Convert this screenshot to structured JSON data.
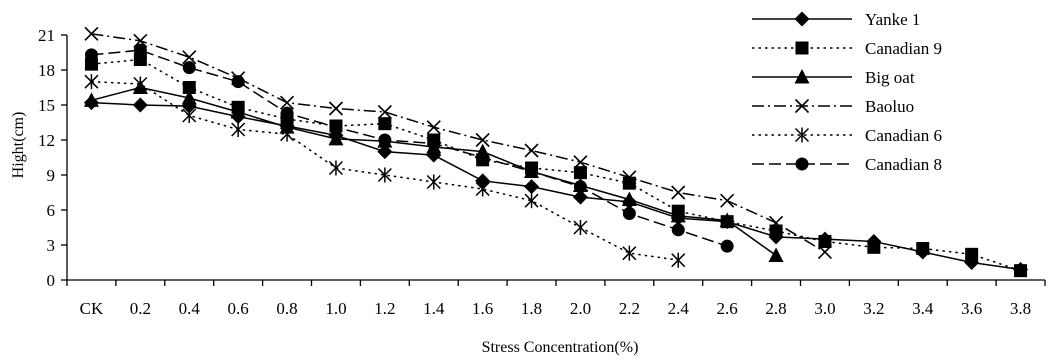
{
  "chart_data": {
    "type": "line",
    "title": "",
    "xlabel": "Stress Concentration(%)",
    "ylabel": "Hight(cm)",
    "categories": [
      "CK",
      "0.2",
      "0.4",
      "0.6",
      "0.8",
      "1.0",
      "1.2",
      "1.4",
      "1.6",
      "1.8",
      "2.0",
      "2.2",
      "2.4",
      "2.6",
      "2.8",
      "3.0",
      "3.2",
      "3.4",
      "3.6",
      "3.8"
    ],
    "ylim": [
      0,
      21
    ],
    "yticks": [
      "0",
      "3",
      "6",
      "9",
      "12",
      "15",
      "18",
      "21"
    ],
    "grid": false,
    "legend": "top-right",
    "series": [
      {
        "name": "Yanke 1",
        "marker": "diamond",
        "dash": "solid",
        "values": [
          15.2,
          15.0,
          14.9,
          14.0,
          13.2,
          12.4,
          11.0,
          10.7,
          8.5,
          8.0,
          7.1,
          6.7,
          5.3,
          5.0,
          3.7,
          3.5,
          3.3,
          2.4,
          1.5,
          0.9
        ]
      },
      {
        "name": "Canadian 9",
        "marker": "square",
        "dash": "dotted",
        "values": [
          18.5,
          18.9,
          16.5,
          14.8,
          13.8,
          13.2,
          13.4,
          12.0,
          10.3,
          9.6,
          9.2,
          8.3,
          5.9,
          5.0,
          4.2,
          3.3,
          2.8,
          2.7,
          2.2,
          0.8
        ]
      },
      {
        "name": "Big oat",
        "marker": "triangle",
        "dash": "solid",
        "values": [
          15.4,
          16.5,
          15.6,
          14.4,
          13.1,
          12.1,
          11.9,
          11.4,
          11.0,
          9.3,
          8.1,
          6.9,
          5.5,
          5.1,
          2.1,
          null,
          null,
          null,
          null,
          null
        ]
      },
      {
        "name": "Baoluo",
        "marker": "x",
        "dash": "dashdot",
        "values": [
          21.1,
          20.5,
          19.1,
          17.3,
          15.2,
          14.7,
          14.4,
          13.1,
          12.0,
          11.1,
          10.1,
          8.8,
          7.5,
          6.8,
          4.9,
          2.4,
          null,
          null,
          null,
          null
        ]
      },
      {
        "name": "Canadian 6",
        "marker": "star",
        "dash": "dotted",
        "values": [
          17.0,
          16.8,
          14.1,
          12.9,
          12.5,
          9.6,
          9.0,
          8.4,
          7.8,
          6.8,
          4.5,
          2.3,
          1.7,
          null,
          null,
          null,
          null,
          null,
          null,
          null
        ]
      },
      {
        "name": "Canadian 8",
        "marker": "circle",
        "dash": "dashed",
        "values": [
          19.3,
          19.7,
          18.2,
          17.0,
          14.3,
          13.1,
          12.0,
          11.7,
          10.5,
          9.3,
          8.0,
          5.7,
          4.3,
          2.9,
          null,
          null,
          null,
          null,
          null,
          null
        ]
      }
    ]
  }
}
